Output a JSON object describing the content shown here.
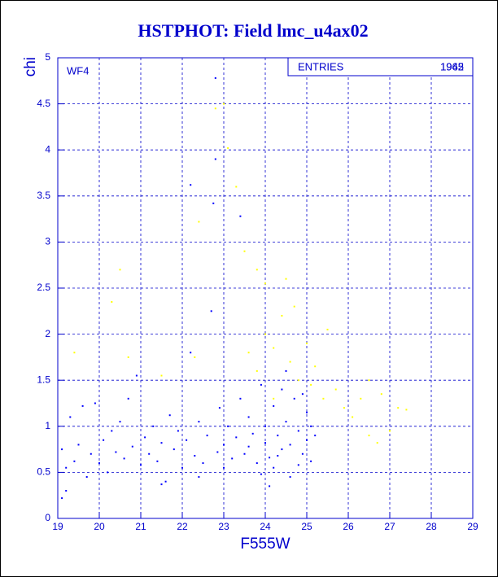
{
  "chart_data": {
    "type": "scatter",
    "title": "HSTPHOT: Field lmc_u4ax02",
    "x_label": "F555W",
    "y_label": "chi",
    "panel": "WF4",
    "stats_label": "ENTRIES",
    "entries": [
      1962,
      1945
    ],
    "xlim": [
      19,
      29
    ],
    "ylim": [
      0,
      5
    ],
    "xticks": [
      19,
      20,
      21,
      22,
      23,
      24,
      25,
      26,
      27,
      28,
      29
    ],
    "yticks": [
      0,
      0.5,
      1,
      1.5,
      2,
      2.5,
      3,
      3.5,
      4,
      4.5,
      5
    ],
    "grid": true,
    "frame_color": "#0000cc",
    "series": [
      {
        "color": "#0000ff",
        "x": [
          19.1,
          19.2,
          19.3,
          19.4,
          19.5,
          19.6,
          19.7,
          19.8,
          19.9,
          20.0,
          20.1,
          20.2,
          20.3,
          20.4,
          20.5,
          20.6,
          20.7,
          20.8,
          20.9,
          21.0,
          21.1,
          21.2,
          21.3,
          21.4,
          21.5,
          21.6,
          21.7,
          21.8,
          21.9,
          22.0,
          22.1,
          22.2,
          22.2,
          22.3,
          22.4,
          22.5,
          22.6,
          22.7,
          22.75,
          22.8,
          22.8,
          22.85,
          22.9,
          23.0,
          23.0,
          23.1,
          23.2,
          23.3,
          23.4,
          23.4,
          23.5,
          23.6,
          23.7,
          23.8,
          23.9,
          24.0,
          24.0,
          24.1,
          24.2,
          24.3,
          24.4,
          24.5,
          24.5,
          24.6,
          24.7,
          24.8,
          24.9,
          25.0,
          25.0,
          25.1,
          25.1,
          24.2,
          24.6,
          23.9,
          24.8,
          25.2,
          24.4,
          24.9,
          24.3,
          23.6,
          19.2,
          19.1,
          24.1,
          22.4,
          21.5
        ],
        "values": [
          0.75,
          0.55,
          1.1,
          0.62,
          0.8,
          1.22,
          0.45,
          0.7,
          1.25,
          0.6,
          0.85,
          0.5,
          0.95,
          0.72,
          1.05,
          0.65,
          1.3,
          0.78,
          1.55,
          0.58,
          0.88,
          0.7,
          1.0,
          0.62,
          0.82,
          0.4,
          1.12,
          0.75,
          0.95,
          0.55,
          0.85,
          1.8,
          3.62,
          0.68,
          1.05,
          0.6,
          0.9,
          2.25,
          3.42,
          4.78,
          3.9,
          0.72,
          1.2,
          0.8,
          0.55,
          1.0,
          0.65,
          0.88,
          3.28,
          1.3,
          0.7,
          1.1,
          0.92,
          0.6,
          1.45,
          0.82,
          1.0,
          0.66,
          1.22,
          0.9,
          0.75,
          1.6,
          1.05,
          0.8,
          1.3,
          0.95,
          0.7,
          1.15,
          0.85,
          0.62,
          1.0,
          0.55,
          0.45,
          0.48,
          0.58,
          0.9,
          1.4,
          1.35,
          0.68,
          0.78,
          0.3,
          0.22,
          0.35,
          0.45,
          0.37
        ]
      },
      {
        "color": "#ffff00",
        "x": [
          22.8,
          23.0,
          23.1,
          23.3,
          22.4,
          23.5,
          23.8,
          24.0,
          24.5,
          20.5,
          20.3,
          19.4,
          20.7,
          21.5,
          22.3,
          23.6,
          23.8,
          24.0,
          24.2,
          24.4,
          24.6,
          24.8,
          25.0,
          25.2,
          25.5,
          25.4,
          25.7,
          25.9,
          26.1,
          26.3,
          26.5,
          26.5,
          26.7,
          26.8,
          27.2,
          27.4,
          27.0,
          24.2,
          25.1,
          24.7
        ],
        "values": [
          4.45,
          4.5,
          4.02,
          3.6,
          3.22,
          2.9,
          2.7,
          2.55,
          2.6,
          2.7,
          2.35,
          1.8,
          1.75,
          1.55,
          1.75,
          1.8,
          1.6,
          2.0,
          1.85,
          2.2,
          1.7,
          1.5,
          1.9,
          1.65,
          2.05,
          1.3,
          1.4,
          1.2,
          1.1,
          1.3,
          1.5,
          0.9,
          0.82,
          1.35,
          1.2,
          1.18,
          0.95,
          1.3,
          1.45,
          2.3
        ]
      }
    ]
  }
}
